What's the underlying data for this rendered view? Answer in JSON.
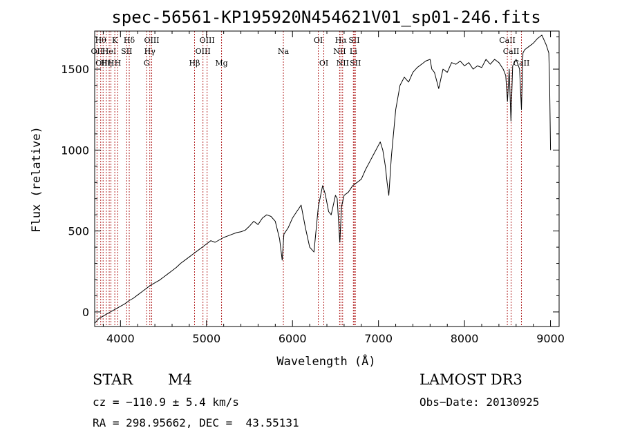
{
  "chart_data": {
    "type": "line",
    "title": "spec-56561-KP195920N454621V01_sp01-246.fits",
    "xlabel": "Wavelength (Å)",
    "ylabel": "Flux (relative)",
    "xlim": [
      3700,
      9100
    ],
    "ylim": [
      -90,
      1735
    ],
    "xticks": [
      4000,
      5000,
      6000,
      7000,
      8000,
      9000
    ],
    "yticks": [
      0,
      500,
      1000,
      1500
    ],
    "line_color": "#000000",
    "marker_color": "#b22222",
    "series": [
      {
        "name": "spectrum",
        "x": [
          3700,
          3750,
          3800,
          3850,
          3900,
          3950,
          4000,
          4050,
          4100,
          4150,
          4200,
          4250,
          4300,
          4350,
          4400,
          4450,
          4500,
          4550,
          4600,
          4650,
          4700,
          4750,
          4800,
          4850,
          4900,
          4950,
          5000,
          5050,
          5100,
          5150,
          5200,
          5250,
          5300,
          5350,
          5400,
          5450,
          5500,
          5550,
          5600,
          5650,
          5700,
          5750,
          5800,
          5850,
          5880,
          5900,
          5950,
          6000,
          6050,
          6100,
          6150,
          6200,
          6250,
          6300,
          6350,
          6380,
          6420,
          6450,
          6500,
          6520,
          6550,
          6570,
          6600,
          6650,
          6700,
          6750,
          6800,
          6850,
          6900,
          6950,
          7000,
          7020,
          7050,
          7080,
          7100,
          7120,
          7150,
          7200,
          7250,
          7300,
          7350,
          7400,
          7450,
          7500,
          7550,
          7600,
          7620,
          7650,
          7700,
          7750,
          7800,
          7850,
          7900,
          7950,
          8000,
          8050,
          8100,
          8150,
          8200,
          8250,
          8300,
          8350,
          8400,
          8450,
          8480,
          8500,
          8520,
          8540,
          8560,
          8600,
          8640,
          8662,
          8680,
          8700,
          8750,
          8800,
          8850,
          8900,
          8950,
          8980,
          8990,
          9000
        ],
        "values": [
          -70,
          -40,
          -25,
          -10,
          5,
          20,
          35,
          50,
          70,
          85,
          105,
          125,
          145,
          165,
          180,
          195,
          215,
          235,
          255,
          275,
          300,
          320,
          340,
          360,
          380,
          400,
          420,
          440,
          430,
          445,
          460,
          470,
          480,
          490,
          495,
          505,
          530,
          560,
          540,
          580,
          600,
          590,
          560,
          450,
          320,
          480,
          520,
          580,
          620,
          660,
          520,
          400,
          370,
          650,
          780,
          730,
          620,
          600,
          720,
          700,
          430,
          650,
          720,
          740,
          780,
          800,
          820,
          880,
          930,
          980,
          1030,
          1050,
          1000,
          900,
          800,
          720,
          960,
          1250,
          1400,
          1450,
          1420,
          1480,
          1510,
          1530,
          1550,
          1560,
          1500,
          1480,
          1380,
          1500,
          1480,
          1540,
          1530,
          1550,
          1520,
          1540,
          1500,
          1520,
          1510,
          1560,
          1530,
          1560,
          1540,
          1500,
          1460,
          1300,
          1500,
          1180,
          1520,
          1560,
          1500,
          1250,
          1600,
          1620,
          1640,
          1660,
          1690,
          1710,
          1650,
          1600,
          1400,
          1000
        ]
      }
    ],
    "line_markers": [
      {
        "x": 3727,
        "label": "OII",
        "row": 1
      },
      {
        "x": 3770,
        "label": "Hθ",
        "row": 0
      },
      {
        "x": 3798,
        "label": "OIII",
        "row": 2
      },
      {
        "x": 3835,
        "label": "Hη",
        "row": 2
      },
      {
        "x": 3869,
        "label": "HeI",
        "row": 1
      },
      {
        "x": 3889,
        "label": "H",
        "row": 2
      },
      {
        "x": 3934,
        "label": "K",
        "row": 0
      },
      {
        "x": 3969,
        "label": "H",
        "row": 2
      },
      {
        "x": 4072,
        "label": "SII",
        "row": 1
      },
      {
        "x": 4102,
        "label": "Hδ",
        "row": 0
      },
      {
        "x": 4304,
        "label": "G",
        "row": 2
      },
      {
        "x": 4341,
        "label": "Hγ",
        "row": 1
      },
      {
        "x": 4363,
        "label": "OIII",
        "row": 0
      },
      {
        "x": 4861,
        "label": "Hβ",
        "row": 2
      },
      {
        "x": 4959,
        "label": "OIII",
        "row": 1
      },
      {
        "x": 5007,
        "label": "OIII",
        "row": 0
      },
      {
        "x": 5175,
        "label": "Mg",
        "row": 2
      },
      {
        "x": 5894,
        "label": "Na",
        "row": 1
      },
      {
        "x": 6300,
        "label": "OI",
        "row": 0
      },
      {
        "x": 6364,
        "label": "OI",
        "row": 2
      },
      {
        "x": 6548,
        "label": "NII",
        "row": 1
      },
      {
        "x": 6563,
        "label": "Hα",
        "row": 0
      },
      {
        "x": 6583,
        "label": "NII",
        "row": 2
      },
      {
        "x": 6708,
        "label": "Li",
        "row": 1
      },
      {
        "x": 6717,
        "label": "SII",
        "row": 0
      },
      {
        "x": 6731,
        "label": "SII",
        "row": 2
      },
      {
        "x": 8498,
        "label": "CaII",
        "row": 0
      },
      {
        "x": 8542,
        "label": "CaII",
        "row": 1
      },
      {
        "x": 8662,
        "label": "CaII",
        "row": 2
      }
    ]
  },
  "info": {
    "object_class": "STAR",
    "subclass": "M4",
    "survey": "LAMOST DR3",
    "cz": "cz = −110.9 ± 5.4 km/s",
    "obs_date": "Obs−Date: 20130925",
    "coords": "RA = 298.95662, DEC =  43.55131"
  }
}
